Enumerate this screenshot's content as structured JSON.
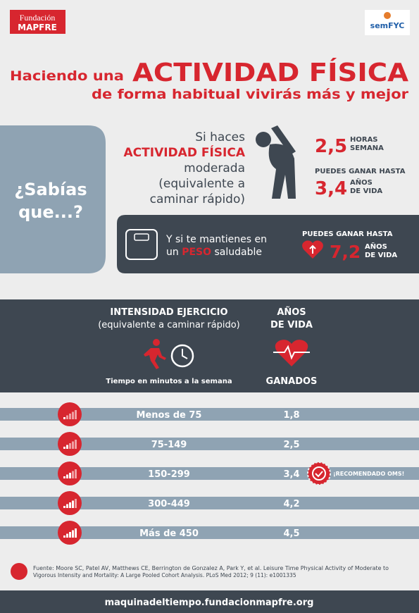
{
  "header": {
    "logo_left": [
      "Fundación",
      "MAPFRE"
    ],
    "logo_right": "semFYC"
  },
  "title": {
    "lead": "Haciendo una",
    "highlight": "ACTIVIDAD FÍSICA",
    "line2": "de forma habitual vivirás más y mejor"
  },
  "did_you_know": [
    "¿Sabías",
    "que...?"
  ],
  "activity": {
    "lines": [
      "Si haces",
      "ACTIVIDAD FÍSICA",
      "moderada",
      "(equivalente a",
      "caminar rápido)"
    ],
    "hours": "2,5",
    "hours_unit": [
      "HORAS",
      "SEMANA"
    ],
    "gain_label": "PUEDES GANAR HASTA",
    "years": "3,4",
    "years_unit": [
      "AÑOS",
      "DE VIDA"
    ]
  },
  "weight": {
    "line1": "Y si te mantienes en",
    "line2": [
      "un",
      "PESO",
      "saludable"
    ],
    "gain_label": "PUEDES GANAR HASTA",
    "years": "7,2",
    "years_unit": [
      "AÑOS",
      "DE VIDA"
    ]
  },
  "table": {
    "header": {
      "intensity": "INTENSIDAD EJERCICIO",
      "intensity_note": "(equivalente a caminar rápido)",
      "years": [
        "AÑOS",
        "DE VIDA"
      ],
      "time": "Tiempo en minutos a la semana",
      "gained": "GANADOS"
    },
    "rows": [
      [
        "Menos de 75",
        "1,8"
      ],
      [
        "75-149",
        "2,5"
      ],
      [
        "150-299",
        "3,4"
      ],
      [
        "300-449",
        "4,2"
      ],
      [
        "Más de 450",
        "4,5"
      ]
    ],
    "recommended": "¡RECOMENDADO OMS!"
  },
  "source": [
    "Fuente: Moore SC, Patel AV, Matthews CE, Berrington de Gonzalez A, Park Y, et al. Leisure Time Physical Activity of Moderate to",
    "Vigorous Intensity and Mortality: A Large Pooled Cohort Analysis. PLoS Med 2012; 9 (11): e1001335"
  ],
  "footer": "maquinadeltiempo.fundacionmapfre.org"
}
